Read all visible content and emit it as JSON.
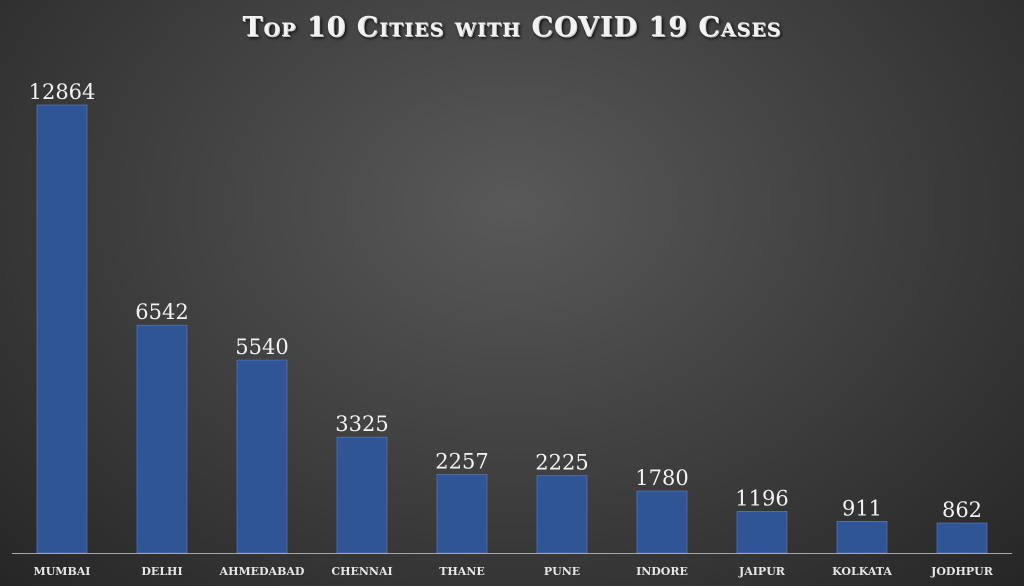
{
  "chart_data": {
    "type": "bar",
    "title": "Top 10 Cities with COVID 19 Cases",
    "xlabel": "",
    "ylabel": "",
    "categories": [
      "MUMBAI",
      "DELHI",
      "AHMEDABAD",
      "CHENNAI",
      "THANE",
      "PUNE",
      "INDORE",
      "JAIPUR",
      "KOLKATA",
      "JODHPUR"
    ],
    "values": [
      12864,
      6542,
      5540,
      3325,
      2257,
      2225,
      1780,
      1196,
      911,
      862
    ],
    "ylim": [
      0,
      12864
    ],
    "grid": false,
    "legend": "none",
    "bar_color": "#2f5597",
    "show_data_labels": true
  }
}
